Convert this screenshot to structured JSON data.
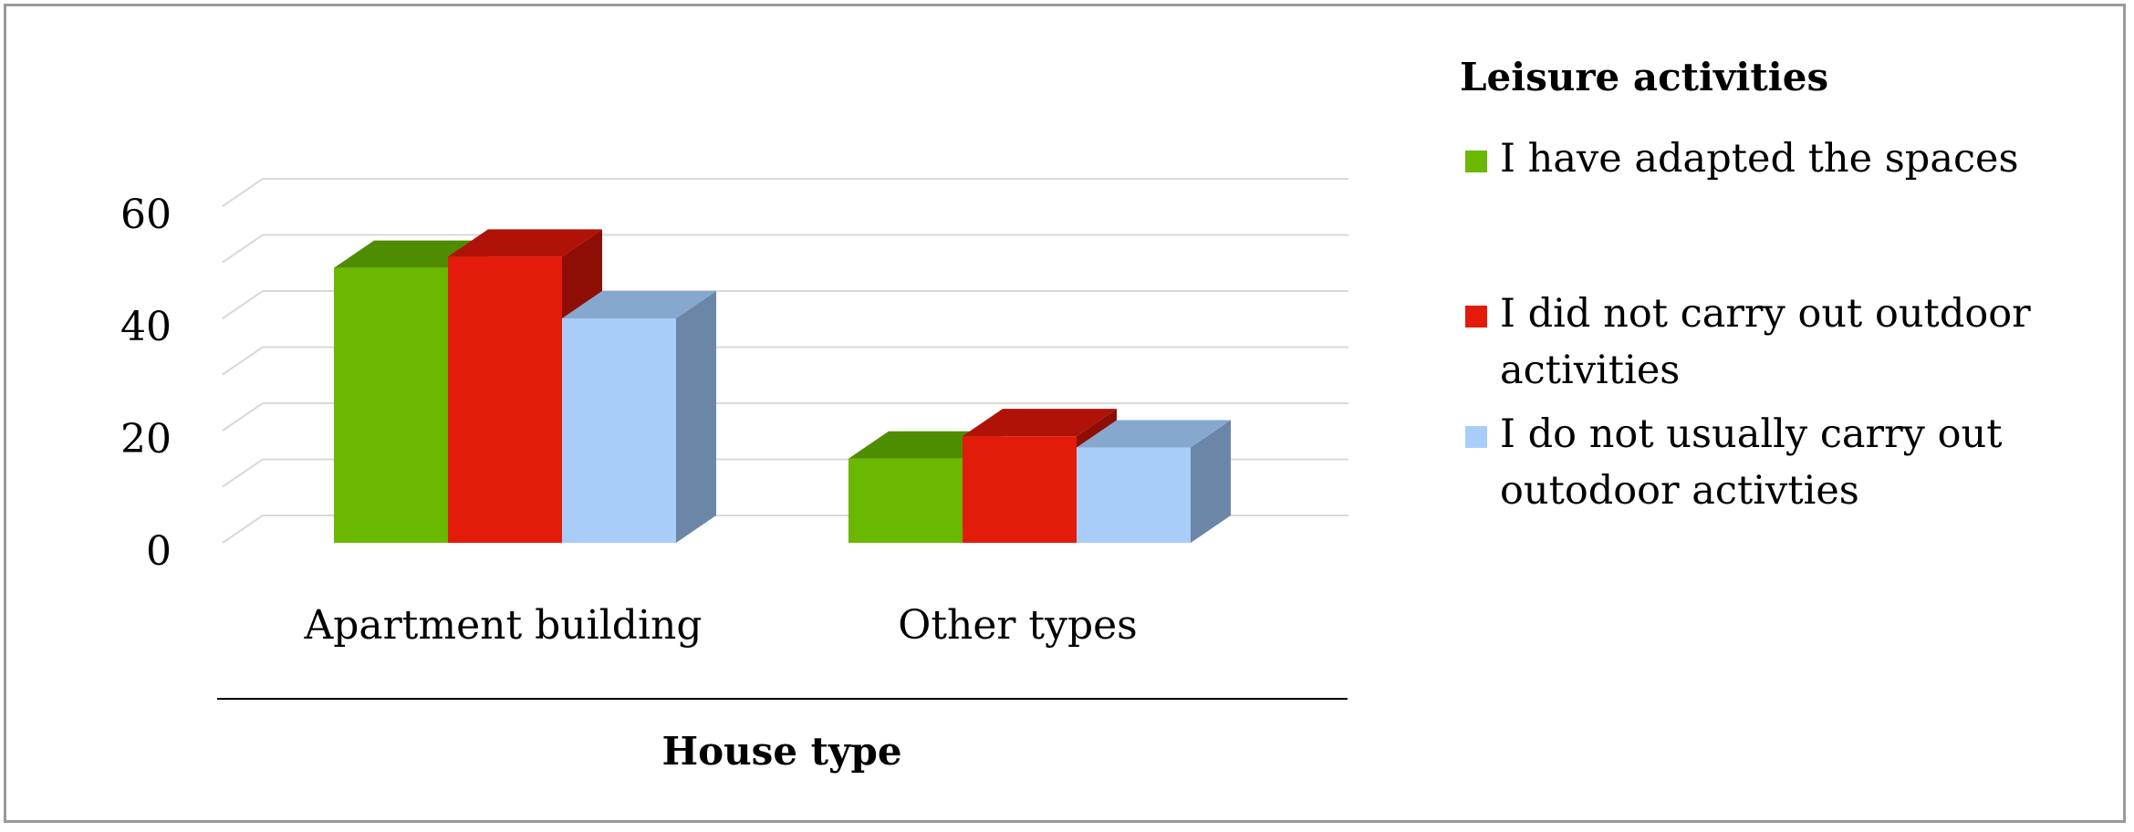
{
  "chart_data": {
    "type": "bar",
    "style": "3d-clustered-column",
    "categories": [
      "Apartment building",
      "Other types"
    ],
    "series": [
      {
        "name": "I have adapted the spaces",
        "values": [
          49,
          15
        ],
        "color": "#6ab800",
        "top_color": "#4f8d00",
        "side_color": "#4f8d00"
      },
      {
        "name": "I did not carry out outdoor activities",
        "values": [
          51,
          19
        ],
        "color": "#e31b0a",
        "top_color": "#b01208",
        "side_color": "#8e0e06"
      },
      {
        "name": "I do not usually carry out outodoor activties",
        "values": [
          40,
          17
        ],
        "color": "#a9cdf9",
        "top_color": "#86a8cf",
        "side_color": "#6c86a8"
      }
    ],
    "xlabel": "House type",
    "ylabel": "",
    "ylim": [
      0,
      60
    ],
    "yticks": [
      0,
      20,
      40,
      60
    ],
    "grid": true,
    "legend_title": "Leisure activities",
    "legend_position": "right"
  }
}
